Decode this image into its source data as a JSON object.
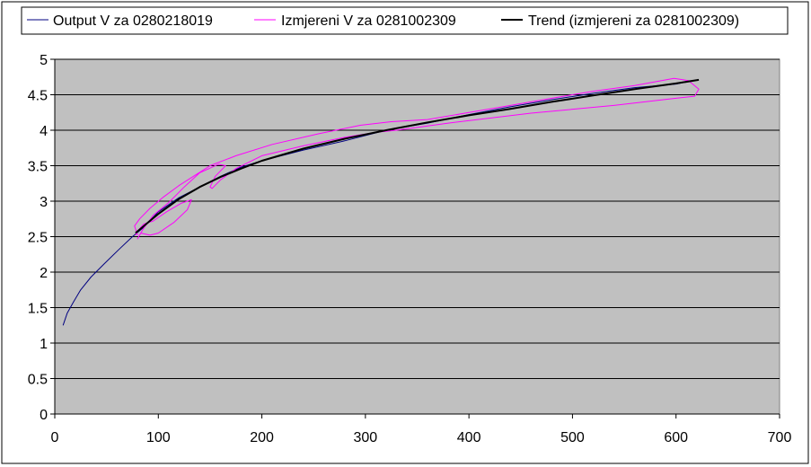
{
  "chart_data": {
    "type": "line",
    "title": "",
    "xlabel": "",
    "ylabel": "",
    "xlim": [
      0,
      700
    ],
    "ylim": [
      0,
      5
    ],
    "x_ticks": [
      "0",
      "100",
      "200",
      "300",
      "400",
      "500",
      "600",
      "700"
    ],
    "y_ticks": [
      "0",
      "0.5",
      "1",
      "1.5",
      "2",
      "2.5",
      "3",
      "3.5",
      "4",
      "4.5",
      "5"
    ],
    "grid": "horizontal",
    "legend_position": "top",
    "plot_background": "#c0c0c0",
    "series": [
      {
        "name": "Output V za 0280218019",
        "color": "#000080",
        "points": [
          [
            8,
            1.25
          ],
          [
            12,
            1.42
          ],
          [
            18,
            1.58
          ],
          [
            25,
            1.75
          ],
          [
            35,
            1.93
          ],
          [
            48,
            2.12
          ],
          [
            62,
            2.32
          ],
          [
            75,
            2.5
          ],
          [
            85,
            2.62
          ],
          [
            100,
            2.85
          ],
          [
            120,
            3.05
          ],
          [
            140,
            3.2
          ],
          [
            160,
            3.35
          ],
          [
            180,
            3.48
          ],
          [
            200,
            3.57
          ],
          [
            240,
            3.72
          ],
          [
            280,
            3.85
          ],
          [
            320,
            4.0
          ],
          [
            360,
            4.1
          ],
          [
            400,
            4.22
          ],
          [
            440,
            4.33
          ],
          [
            480,
            4.43
          ],
          [
            520,
            4.52
          ],
          [
            560,
            4.6
          ],
          [
            600,
            4.65
          ],
          [
            610,
            4.68
          ]
        ]
      },
      {
        "name": "Izmjereni V za 0281002309",
        "color": "#ff00ff",
        "points": [
          [
            80,
            2.52
          ],
          [
            77,
            2.65
          ],
          [
            82,
            2.75
          ],
          [
            92,
            2.9
          ],
          [
            105,
            3.06
          ],
          [
            120,
            3.22
          ],
          [
            135,
            3.36
          ],
          [
            150,
            3.5
          ],
          [
            175,
            3.64
          ],
          [
            210,
            3.8
          ],
          [
            255,
            3.95
          ],
          [
            295,
            4.07
          ],
          [
            325,
            4.12
          ],
          [
            360,
            4.15
          ],
          [
            400,
            4.25
          ],
          [
            440,
            4.35
          ],
          [
            480,
            4.45
          ],
          [
            520,
            4.55
          ],
          [
            560,
            4.63
          ],
          [
            598,
            4.73
          ],
          [
            612,
            4.7
          ],
          [
            622,
            4.58
          ],
          [
            618,
            4.48
          ],
          [
            600,
            4.45
          ],
          [
            540,
            4.35
          ],
          [
            460,
            4.24
          ],
          [
            380,
            4.1
          ],
          [
            330,
            4.0
          ],
          [
            310,
            3.97
          ],
          [
            280,
            3.9
          ],
          [
            240,
            3.78
          ],
          [
            200,
            3.64
          ],
          [
            175,
            3.46
          ],
          [
            160,
            3.3
          ],
          [
            152,
            3.18
          ],
          [
            150,
            3.2
          ],
          [
            155,
            3.35
          ],
          [
            165,
            3.5
          ],
          [
            158,
            3.52
          ],
          [
            140,
            3.4
          ],
          [
            125,
            3.2
          ],
          [
            110,
            2.98
          ],
          [
            95,
            2.8
          ],
          [
            85,
            2.6
          ],
          [
            80,
            2.47
          ],
          [
            83,
            2.55
          ],
          [
            92,
            2.52
          ],
          [
            100,
            2.55
          ],
          [
            115,
            2.7
          ],
          [
            128,
            2.88
          ],
          [
            132,
            3.02
          ],
          [
            122,
            2.97
          ],
          [
            108,
            2.85
          ],
          [
            95,
            2.72
          ],
          [
            86,
            2.68
          ],
          [
            80,
            2.58
          ],
          [
            78,
            2.52
          ]
        ]
      },
      {
        "name": "Trend (izmjereni za 0281002309)",
        "color": "#000000",
        "points": [
          [
            78,
            2.55
          ],
          [
            90,
            2.7
          ],
          [
            100,
            2.82
          ],
          [
            120,
            3.03
          ],
          [
            140,
            3.2
          ],
          [
            160,
            3.34
          ],
          [
            180,
            3.46
          ],
          [
            200,
            3.57
          ],
          [
            240,
            3.74
          ],
          [
            280,
            3.88
          ],
          [
            320,
            4.0
          ],
          [
            360,
            4.11
          ],
          [
            400,
            4.21
          ],
          [
            440,
            4.3
          ],
          [
            480,
            4.4
          ],
          [
            520,
            4.49
          ],
          [
            560,
            4.58
          ],
          [
            600,
            4.66
          ],
          [
            622,
            4.71
          ]
        ]
      }
    ]
  }
}
